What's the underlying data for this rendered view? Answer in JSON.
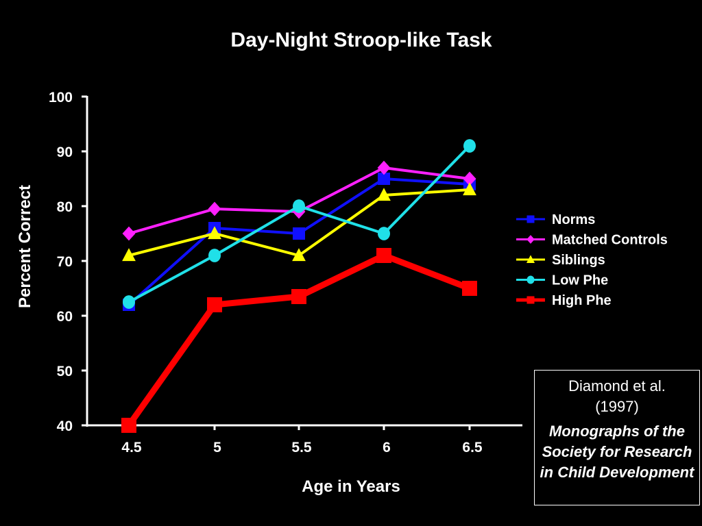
{
  "chart_data": {
    "type": "line",
    "title": "Day-Night Stroop-like Task",
    "xlabel": "Age in Years",
    "ylabel": "Percent Correct",
    "categories": [
      "4.5",
      "5",
      "5.5",
      "6",
      "6.5"
    ],
    "ylim": [
      40,
      100
    ],
    "yticks": [
      40,
      50,
      60,
      70,
      80,
      90,
      100
    ],
    "grid": false,
    "legend_position": "right",
    "series": [
      {
        "name": "Norms",
        "marker": "square",
        "color": "#1010ff",
        "values": [
          62,
          76,
          75,
          85,
          84
        ]
      },
      {
        "name": "Matched Controls",
        "marker": "diamond",
        "color": "#ff20ff",
        "values": [
          75,
          79.5,
          79,
          87,
          85
        ]
      },
      {
        "name": "Siblings",
        "marker": "triangle",
        "color": "#ffff00",
        "values": [
          71,
          75,
          71,
          82,
          83
        ]
      },
      {
        "name": "Low Phe",
        "marker": "circle",
        "color": "#20e0e8",
        "values": [
          62.5,
          71,
          80,
          75,
          91
        ]
      },
      {
        "name": "High Phe",
        "marker": "square",
        "color": "#ff0000",
        "values": [
          40,
          62,
          63.5,
          71,
          65
        ]
      }
    ]
  },
  "citation": {
    "authors": "Diamond et al.",
    "year": "(1997)",
    "journal": "Monographs of the Society for Research in Child Development"
  }
}
